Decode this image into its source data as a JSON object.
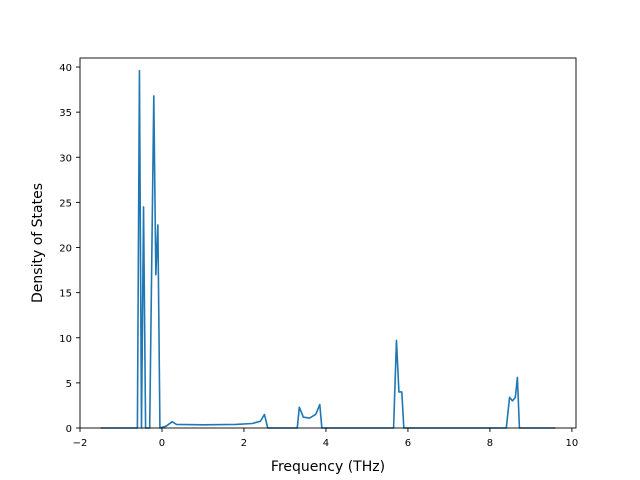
{
  "chart_data": {
    "type": "line",
    "title": "",
    "xlabel": "Frequency (THz)",
    "ylabel": "Density of States",
    "xlim": [
      -2,
      10.1
    ],
    "ylim": [
      0,
      41
    ],
    "x_ticks": [
      -2,
      0,
      2,
      4,
      6,
      8,
      10
    ],
    "y_ticks": [
      0,
      5,
      10,
      15,
      20,
      25,
      30,
      35,
      40
    ],
    "x_tick_labels": [
      "−2",
      "0",
      "2",
      "4",
      "6",
      "8",
      "10"
    ],
    "y_tick_labels": [
      "0",
      "5",
      "10",
      "15",
      "20",
      "25",
      "30",
      "35",
      "40"
    ],
    "grid": false,
    "line_color": "#1f77b4",
    "series": [
      {
        "points": [
          [
            -1.5,
            0.0
          ],
          [
            -0.6,
            0.0
          ],
          [
            -0.55,
            39.6
          ],
          [
            -0.5,
            0.0
          ],
          [
            -0.45,
            24.5
          ],
          [
            -0.4,
            0.0
          ],
          [
            -0.3,
            0.0
          ],
          [
            -0.2,
            36.8
          ],
          [
            -0.15,
            17.0
          ],
          [
            -0.1,
            22.5
          ],
          [
            -0.05,
            0.0
          ],
          [
            0.1,
            0.2
          ],
          [
            0.25,
            0.7
          ],
          [
            0.35,
            0.4
          ],
          [
            1.0,
            0.35
          ],
          [
            1.8,
            0.4
          ],
          [
            2.2,
            0.5
          ],
          [
            2.4,
            0.75
          ],
          [
            2.5,
            1.5
          ],
          [
            2.58,
            0.0
          ],
          [
            3.3,
            0.0
          ],
          [
            3.35,
            2.3
          ],
          [
            3.45,
            1.2
          ],
          [
            3.6,
            1.1
          ],
          [
            3.75,
            1.5
          ],
          [
            3.85,
            2.6
          ],
          [
            3.9,
            0.0
          ],
          [
            5.65,
            0.0
          ],
          [
            5.72,
            9.7
          ],
          [
            5.78,
            4.0
          ],
          [
            5.85,
            4.0
          ],
          [
            5.9,
            0.0
          ],
          [
            8.4,
            0.0
          ],
          [
            8.48,
            3.4
          ],
          [
            8.55,
            3.0
          ],
          [
            8.62,
            3.4
          ],
          [
            8.67,
            5.6
          ],
          [
            8.72,
            0.0
          ],
          [
            9.6,
            0.0
          ]
        ]
      }
    ]
  }
}
